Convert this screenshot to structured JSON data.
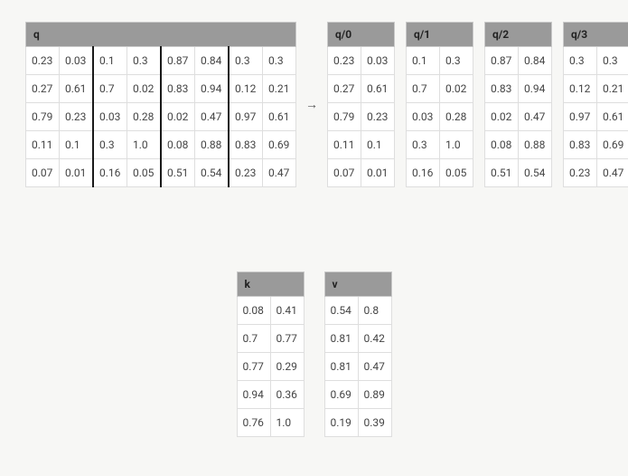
{
  "background_color": "#f7f7f5",
  "cell_border_color": "#dedede",
  "header_bg_color": "#9a9a9a",
  "group_separator_color": "#1a1a1a",
  "arrow_glyph": "→",
  "q": {
    "label": "q",
    "groups": 4,
    "cols_per_group": 2,
    "rows": [
      [
        "0.23",
        "0.03",
        "0.1",
        "0.3",
        "0.87",
        "0.84",
        "0.3",
        "0.3"
      ],
      [
        "0.27",
        "0.61",
        "0.7",
        "0.02",
        "0.83",
        "0.94",
        "0.12",
        "0.21"
      ],
      [
        "0.79",
        "0.23",
        "0.03",
        "0.28",
        "0.02",
        "0.47",
        "0.97",
        "0.61"
      ],
      [
        "0.11",
        "0.1",
        "0.3",
        "1.0",
        "0.08",
        "0.88",
        "0.83",
        "0.69"
      ],
      [
        "0.07",
        "0.01",
        "0.16",
        "0.05",
        "0.51",
        "0.54",
        "0.23",
        "0.47"
      ]
    ]
  },
  "q_split": [
    {
      "label": "q/0",
      "cols": 2,
      "rows": [
        [
          "0.23",
          "0.03"
        ],
        [
          "0.27",
          "0.61"
        ],
        [
          "0.79",
          "0.23"
        ],
        [
          "0.11",
          "0.1"
        ],
        [
          "0.07",
          "0.01"
        ]
      ]
    },
    {
      "label": "q/1",
      "cols": 2,
      "rows": [
        [
          "0.1",
          "0.3"
        ],
        [
          "0.7",
          "0.02"
        ],
        [
          "0.03",
          "0.28"
        ],
        [
          "0.3",
          "1.0"
        ],
        [
          "0.16",
          "0.05"
        ]
      ]
    },
    {
      "label": "q/2",
      "cols": 2,
      "rows": [
        [
          "0.87",
          "0.84"
        ],
        [
          "0.83",
          "0.94"
        ],
        [
          "0.02",
          "0.47"
        ],
        [
          "0.08",
          "0.88"
        ],
        [
          "0.51",
          "0.54"
        ]
      ]
    },
    {
      "label": "q/3",
      "cols": 2,
      "rows": [
        [
          "0.3",
          "0.3"
        ],
        [
          "0.12",
          "0.21"
        ],
        [
          "0.97",
          "0.61"
        ],
        [
          "0.83",
          "0.69"
        ],
        [
          "0.23",
          "0.47"
        ]
      ]
    }
  ],
  "k": {
    "label": "k",
    "cols": 2,
    "rows": [
      [
        "0.08",
        "0.41"
      ],
      [
        "0.7",
        "0.77"
      ],
      [
        "0.77",
        "0.29"
      ],
      [
        "0.94",
        "0.36"
      ],
      [
        "0.76",
        "1.0"
      ]
    ]
  },
  "v": {
    "label": "v",
    "cols": 2,
    "rows": [
      [
        "0.54",
        "0.8"
      ],
      [
        "0.81",
        "0.42"
      ],
      [
        "0.81",
        "0.47"
      ],
      [
        "0.69",
        "0.89"
      ],
      [
        "0.19",
        "0.39"
      ]
    ]
  }
}
